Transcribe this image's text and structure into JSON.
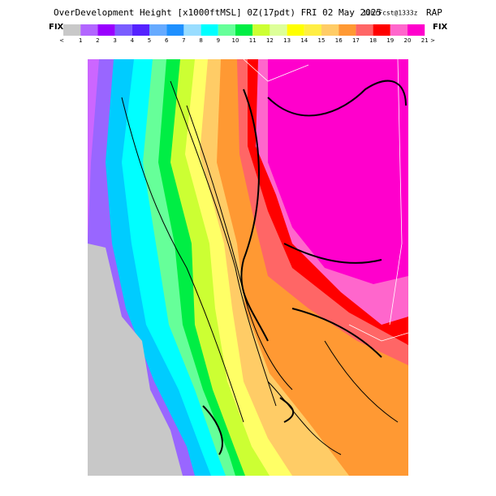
{
  "header": {
    "title": "OverDevelopment Height [x1000ftMSL] 0Z(17pdt) FRI 02 May 2025",
    "forecast": "12hrFcst@1333z",
    "model": "RAP"
  },
  "colorbar": {
    "left_label": "FIX",
    "right_label": "FIX",
    "below_label": "<",
    "above_label": ">",
    "colors": [
      "#c8c8c8",
      "#b266ff",
      "#9900ff",
      "#7a5cff",
      "#5522ff",
      "#66aaff",
      "#1e90ff",
      "#99ddff",
      "#00ffff",
      "#66ff99",
      "#00ee44",
      "#ccff33",
      "#ddff99",
      "#ffff00",
      "#ffee44",
      "#ffcc66",
      "#ff9933",
      "#ff6666",
      "#ff0000",
      "#ff66cc",
      "#ff00cc"
    ],
    "ticks": [
      1,
      2,
      3,
      4,
      5,
      6,
      7,
      8,
      9,
      10,
      11,
      12,
      13,
      14,
      15,
      16,
      17,
      18,
      19,
      20,
      21
    ]
  }
}
